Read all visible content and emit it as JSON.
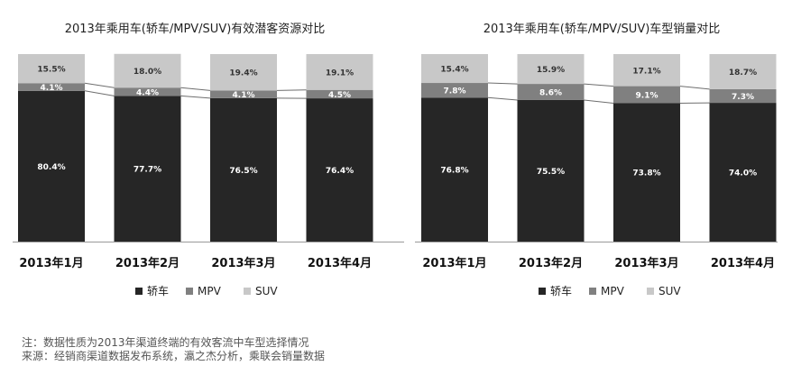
{
  "colors": {
    "sedan": "#262626",
    "mpv": "#808080",
    "suv": "#c8c8c8",
    "connector": "#6e6e6e"
  },
  "chart_data": [
    {
      "type": "bar",
      "stacked": true,
      "normalized": true,
      "title": "2013年乘用车(轿车/MPV/SUV)有效潜客资源对比",
      "categories": [
        "2013年1月",
        "2013年2月",
        "2013年3月",
        "2013年4月"
      ],
      "series": [
        {
          "name": "轿车",
          "values": [
            80.4,
            77.7,
            76.5,
            76.4
          ]
        },
        {
          "name": "MPV",
          "values": [
            4.1,
            4.4,
            4.1,
            4.5
          ]
        },
        {
          "name": "SUV",
          "values": [
            15.5,
            18.0,
            19.4,
            19.1
          ]
        }
      ],
      "value_labels": [
        [
          "80.4%",
          "77.7%",
          "76.5%",
          "76.4%"
        ],
        [
          "4.1%",
          "4.4%",
          "4.1%",
          "4.5%"
        ],
        [
          "15.5%",
          "18.0%",
          "19.4%",
          "19.1%"
        ]
      ],
      "ylim": [
        0,
        100
      ],
      "legend_position": "bottom",
      "grid": false
    },
    {
      "type": "bar",
      "stacked": true,
      "normalized": true,
      "title": "2013年乘用车(轿车/MPV/SUV)车型销量对比",
      "categories": [
        "2013年1月",
        "2013年2月",
        "2013年3月",
        "2013年4月"
      ],
      "series": [
        {
          "name": "轿车",
          "values": [
            76.8,
            75.5,
            73.8,
            74.0
          ]
        },
        {
          "name": "MPV",
          "values": [
            7.8,
            8.6,
            9.1,
            7.3
          ]
        },
        {
          "name": "SUV",
          "values": [
            15.4,
            15.9,
            17.1,
            18.7
          ]
        }
      ],
      "value_labels": [
        [
          "76.8%",
          "75.5%",
          "73.8%",
          "74.0%"
        ],
        [
          "7.8%",
          "8.6%",
          "9.1%",
          "7.3%"
        ],
        [
          "15.4%",
          "15.9%",
          "17.1%",
          "18.7%"
        ]
      ],
      "ylim": [
        0,
        100
      ],
      "legend_position": "bottom",
      "grid": false
    }
  ],
  "notes": {
    "note": "注：数据性质为2013年渠道终端的有效客流中车型选择情况",
    "source": "来源：经销商渠道数据发布系统，瀛之杰分析，乘联会销量数据"
  }
}
